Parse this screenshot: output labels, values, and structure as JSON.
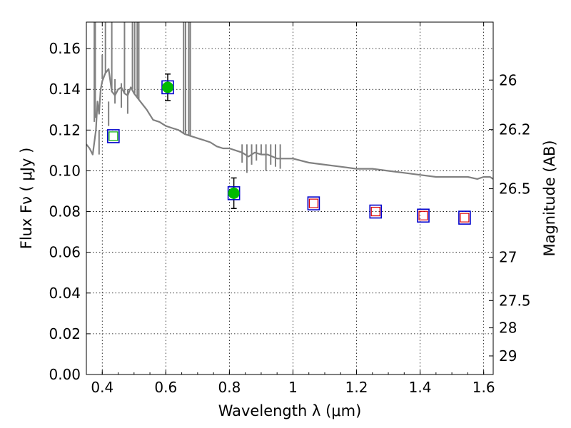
{
  "chart_data": {
    "type": "scatter",
    "title": "",
    "xlabel": "Wavelength  λ (μm)",
    "ylabel": "Flux  Fν  ( μJy )",
    "ylabel_right": "Magnitude (AB)",
    "xlim": [
      0.35,
      1.63
    ],
    "ylim": [
      0.0,
      0.173
    ],
    "x_ticks": [
      0.4,
      0.6,
      0.8,
      1.0,
      1.2,
      1.4,
      1.6
    ],
    "x_tick_labels": [
      "0.4",
      "0.6",
      "0.8",
      "1",
      "1.2",
      "1.4",
      "1.6"
    ],
    "y_ticks": [
      0.0,
      0.02,
      0.04,
      0.06,
      0.08,
      0.1,
      0.12,
      0.14,
      0.16
    ],
    "y_tick_labels": [
      "0.00",
      "0.02",
      "0.04",
      "0.06",
      "0.08",
      "0.10",
      "0.12",
      "0.14",
      "0.16"
    ],
    "right_ticks": [
      26,
      26.2,
      26.5,
      27,
      27.5,
      28,
      29
    ],
    "right_tick_labels": [
      "26",
      "26.2",
      "26.5",
      "27",
      "27.5",
      "28",
      "29"
    ],
    "grid": true,
    "colors": {
      "model": "#808080",
      "model_box": "#0000cc",
      "observed": "#00bb00",
      "photometry_green": "#00aa00",
      "photometry_red": "#dd0000",
      "error_bar": "#000000"
    },
    "series": [
      {
        "role": "model_spectrum",
        "type": "line",
        "x": [
          0.35,
          0.36,
          0.37,
          0.38,
          0.385,
          0.39,
          0.395,
          0.4,
          0.41,
          0.42,
          0.43,
          0.44,
          0.45,
          0.46,
          0.47,
          0.48,
          0.49,
          0.5,
          0.52,
          0.54,
          0.56,
          0.58,
          0.6,
          0.62,
          0.64,
          0.66,
          0.68,
          0.7,
          0.72,
          0.74,
          0.76,
          0.78,
          0.8,
          0.82,
          0.84,
          0.86,
          0.88,
          0.9,
          0.92,
          0.95,
          1.0,
          1.05,
          1.1,
          1.15,
          1.2,
          1.25,
          1.3,
          1.35,
          1.4,
          1.45,
          1.5,
          1.55,
          1.58,
          1.6,
          1.62,
          1.63
        ],
        "y": [
          0.113,
          0.111,
          0.108,
          0.12,
          0.134,
          0.128,
          0.14,
          0.144,
          0.148,
          0.15,
          0.139,
          0.137,
          0.14,
          0.141,
          0.138,
          0.137,
          0.141,
          0.138,
          0.134,
          0.13,
          0.125,
          0.124,
          0.122,
          0.121,
          0.12,
          0.118,
          0.117,
          0.116,
          0.115,
          0.114,
          0.112,
          0.111,
          0.111,
          0.11,
          0.109,
          0.107,
          0.109,
          0.108,
          0.108,
          0.106,
          0.106,
          0.104,
          0.103,
          0.102,
          0.101,
          0.101,
          0.1,
          0.099,
          0.098,
          0.097,
          0.097,
          0.097,
          0.096,
          0.097,
          0.097,
          0.096
        ]
      },
      {
        "role": "model_photometry",
        "type": "scatter",
        "marker": "square",
        "x": [
          0.435,
          0.606,
          0.814,
          1.065,
          1.26,
          1.41,
          1.54
        ],
        "y": [
          0.117,
          0.141,
          0.089,
          0.084,
          0.08,
          0.078,
          0.077
        ]
      },
      {
        "role": "input_photometry",
        "type": "scatter",
        "marker": "square",
        "x": [
          0.435,
          1.065,
          1.26,
          1.41,
          1.54
        ],
        "y": [
          0.117,
          0.084,
          0.08,
          0.078,
          0.077
        ],
        "colors": [
          "green",
          "red",
          "red",
          "red",
          "red"
        ]
      },
      {
        "role": "observed",
        "type": "scatter",
        "marker": "circle",
        "x": [
          0.606,
          0.814
        ],
        "y": [
          0.141,
          0.089
        ],
        "yerr": [
          0.0065,
          0.0075
        ]
      }
    ]
  }
}
